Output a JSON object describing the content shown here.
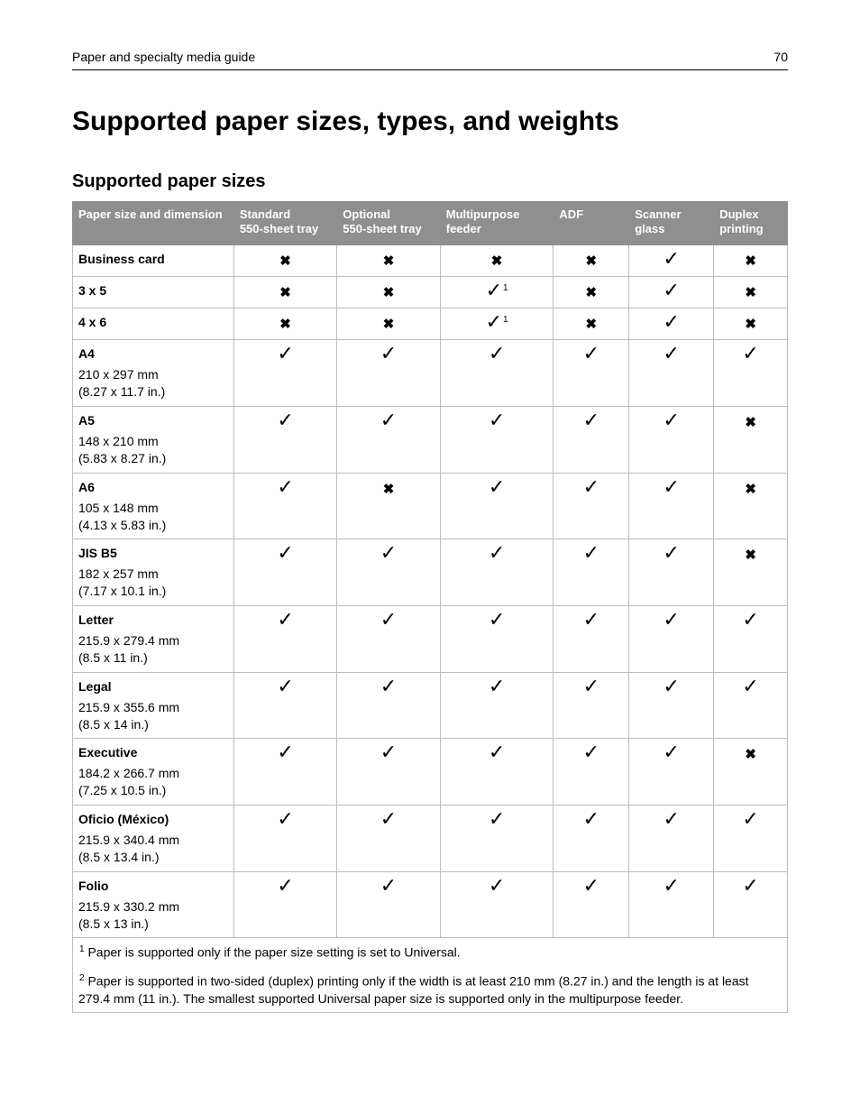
{
  "header": {
    "section": "Paper and specialty media guide",
    "page": "70"
  },
  "title": "Supported paper sizes, types, and weights",
  "subtitle": "Supported paper sizes",
  "symbols": {
    "check": "✓",
    "cross": "✖"
  },
  "columns": [
    "Paper size and dimension",
    "Standard 550-sheet tray",
    "Optional 550-sheet tray",
    "Multipurpose feeder",
    "ADF",
    "Scanner glass",
    "Duplex printing"
  ],
  "rows": [
    {
      "name": "Business card",
      "dims": "",
      "marks": [
        "x",
        "x",
        "x",
        "x",
        "c",
        "x"
      ]
    },
    {
      "name": "3 x 5",
      "dims": "",
      "marks": [
        "x",
        "x",
        "c1",
        "x",
        "c",
        "x"
      ]
    },
    {
      "name": "4 x 6",
      "dims": "",
      "marks": [
        "x",
        "x",
        "c1",
        "x",
        "c",
        "x"
      ]
    },
    {
      "name": "A4",
      "dims": "210 x 297 mm (8.27 x 11.7 in.)",
      "marks": [
        "c",
        "c",
        "c",
        "c",
        "c",
        "c"
      ]
    },
    {
      "name": "A5",
      "dims": "148 x 210 mm (5.83 x 8.27 in.)",
      "marks": [
        "c",
        "c",
        "c",
        "c",
        "c",
        "x"
      ]
    },
    {
      "name": "A6",
      "dims": "105 x 148 mm (4.13 x 5.83 in.)",
      "marks": [
        "c",
        "x",
        "c",
        "c",
        "c",
        "x"
      ]
    },
    {
      "name": "JIS B5",
      "dims": "182 x 257 mm (7.17 x 10.1 in.)",
      "marks": [
        "c",
        "c",
        "c",
        "c",
        "c",
        "x"
      ]
    },
    {
      "name": "Letter",
      "dims": "215.9 x 279.4 mm (8.5 x 11 in.)",
      "marks": [
        "c",
        "c",
        "c",
        "c",
        "c",
        "c"
      ]
    },
    {
      "name": "Legal",
      "dims": "215.9 x 355.6 mm (8.5 x 14 in.)",
      "marks": [
        "c",
        "c",
        "c",
        "c",
        "c",
        "c"
      ]
    },
    {
      "name": "Executive",
      "dims": "184.2 x 266.7 mm (7.25 x 10.5 in.)",
      "marks": [
        "c",
        "c",
        "c",
        "c",
        "c",
        "x"
      ]
    },
    {
      "name": "Oficio (México)",
      "dims": "215.9 x 340.4 mm (8.5 x 13.4 in.)",
      "marks": [
        "c",
        "c",
        "c",
        "c",
        "c",
        "c"
      ]
    },
    {
      "name": "Folio",
      "dims": "215.9 x 330.2 mm (8.5 x 13 in.)",
      "marks": [
        "c",
        "c",
        "c",
        "c",
        "c",
        "c"
      ]
    }
  ],
  "footnotes": {
    "f1": {
      "num": "1",
      "text": " Paper is supported only if the paper size setting is set to Universal."
    },
    "f2": {
      "num": "2",
      "text": " Paper is supported in two-sided (duplex) printing only if the width is at least 210 mm (8.27 in.) and the length is at least 279.4 mm (11 in.). The smallest supported Universal paper size is supported only in the multipurpose feeder."
    }
  }
}
